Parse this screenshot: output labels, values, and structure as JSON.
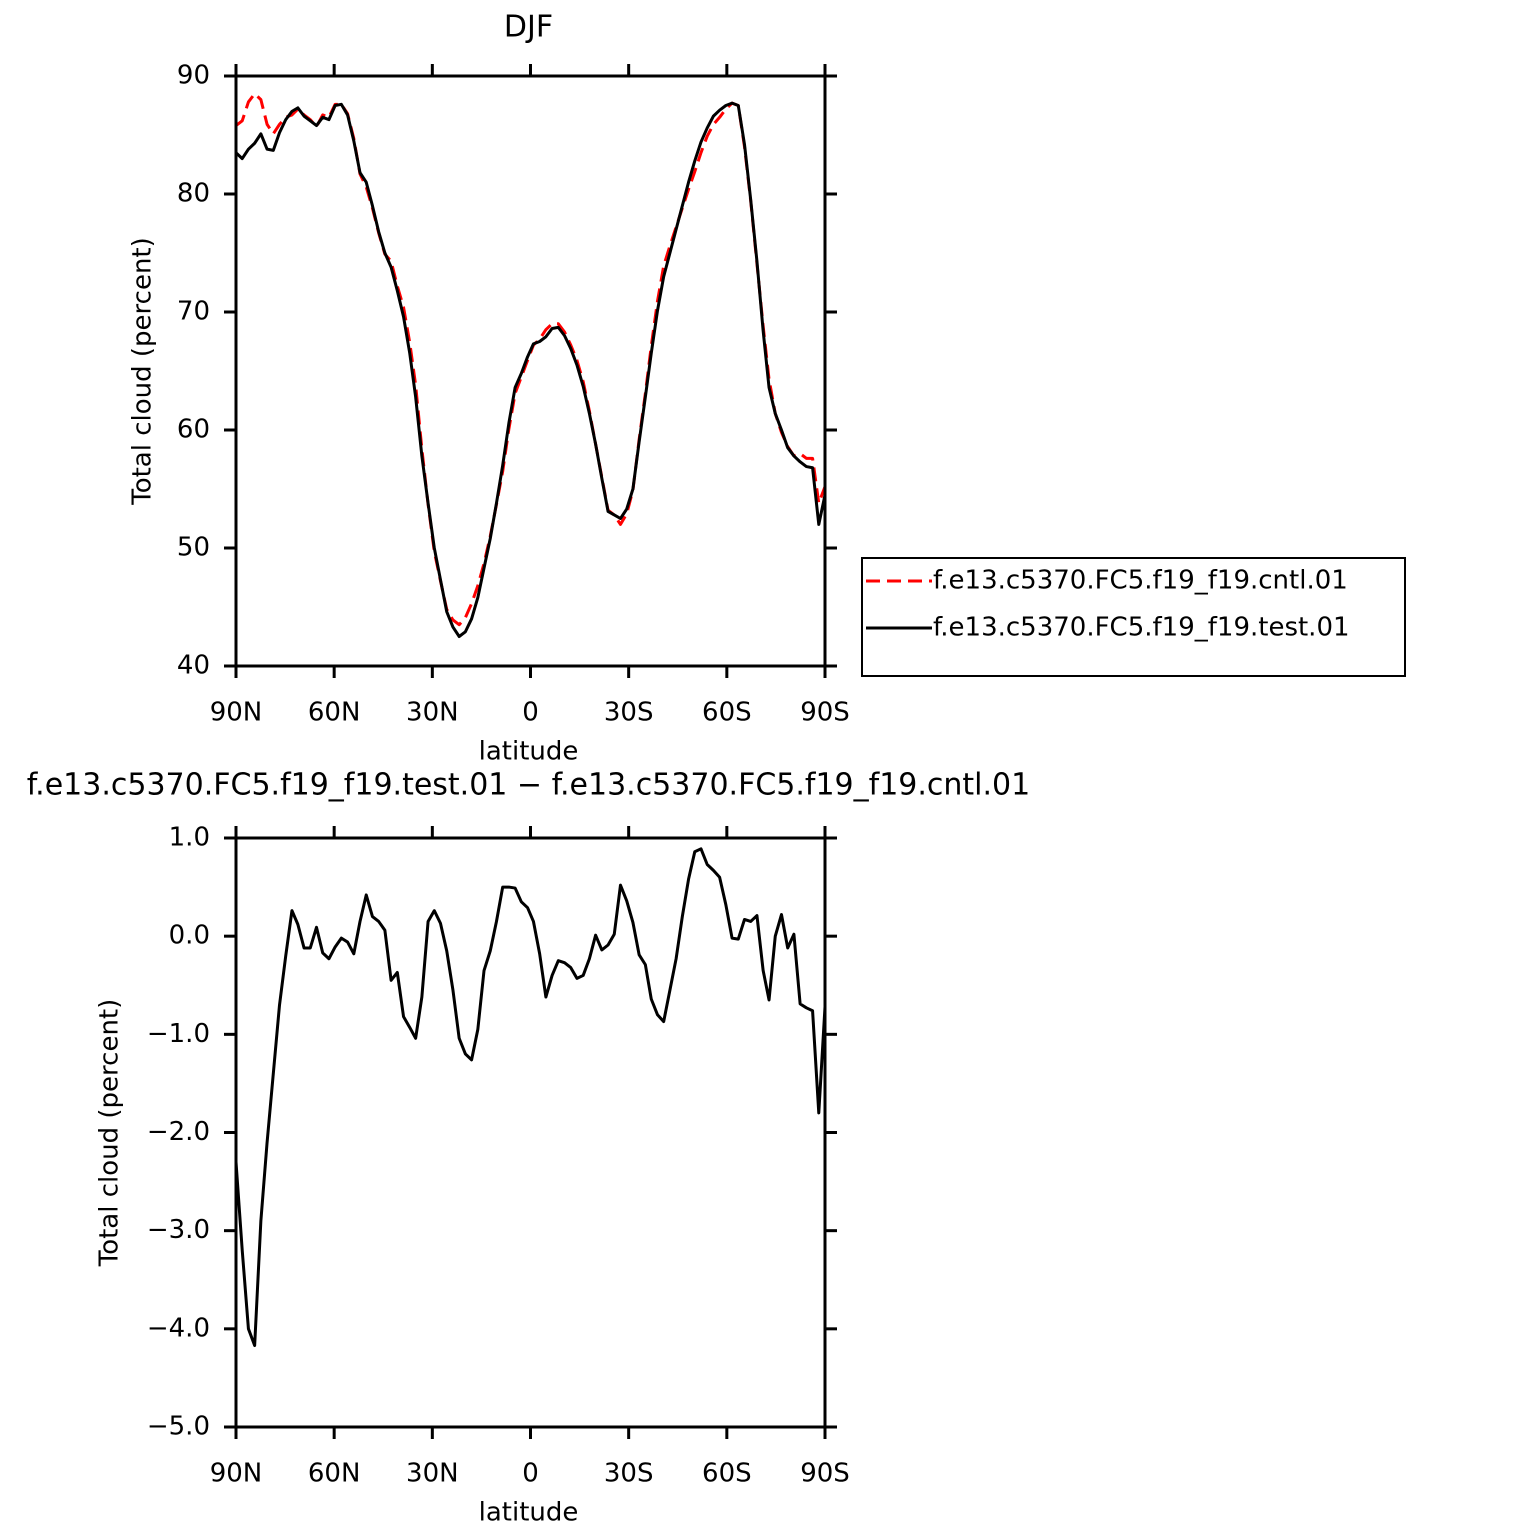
{
  "chart_data": [
    {
      "type": "line",
      "title": "DJF",
      "xlabel": "latitude",
      "ylabel": "Total cloud (percent)",
      "x": [
        90.0,
        88.1,
        86.2,
        84.3,
        82.4,
        80.5,
        78.6,
        76.7,
        74.8,
        72.9,
        71.1,
        69.2,
        67.3,
        65.4,
        63.5,
        61.6,
        59.7,
        57.8,
        55.9,
        54.0,
        52.1,
        50.2,
        48.3,
        46.4,
        44.5,
        42.6,
        40.7,
        38.8,
        36.9,
        35.1,
        33.2,
        31.3,
        29.4,
        27.5,
        25.6,
        23.7,
        21.8,
        19.9,
        18.0,
        16.1,
        14.2,
        12.3,
        10.4,
        8.5,
        6.6,
        4.7,
        2.8,
        0.9,
        -0.9,
        -2.8,
        -4.7,
        -6.6,
        -8.5,
        -10.4,
        -12.3,
        -14.2,
        -16.1,
        -18.0,
        -19.9,
        -21.8,
        -23.7,
        -25.6,
        -27.5,
        -29.4,
        -31.3,
        -33.2,
        -35.1,
        -36.9,
        -38.8,
        -40.7,
        -42.6,
        -44.5,
        -46.4,
        -48.3,
        -50.2,
        -52.1,
        -54.0,
        -55.9,
        -57.8,
        -59.7,
        -61.6,
        -63.5,
        -65.4,
        -67.3,
        -69.2,
        -71.1,
        -72.9,
        -74.8,
        -76.7,
        -78.6,
        -80.5,
        -82.4,
        -84.3,
        -86.2,
        -88.1,
        -90.0
      ],
      "series": [
        {
          "name": "f.e13.c5370.FC5.f19_f19.cntl.01",
          "color": "#ff0000",
          "dashed": true,
          "values": [
            85.8,
            86.2,
            87.8,
            88.5,
            88.0,
            85.9,
            85.1,
            85.9,
            86.5,
            86.7,
            87.2,
            86.7,
            86.3,
            85.7,
            86.7,
            86.5,
            87.6,
            87.6,
            86.8,
            84.7,
            81.7,
            80.6,
            78.8,
            76.7,
            74.9,
            74.3,
            72.2,
            70.4,
            67.4,
            63.8,
            58.4,
            53.7,
            49.7,
            47.2,
            44.8,
            43.9,
            43.5,
            44.1,
            45.3,
            46.8,
            48.7,
            51.0,
            53.7,
            56.5,
            60.1,
            63.1,
            64.5,
            65.9,
            67.2,
            67.7,
            68.5,
            69.0,
            69.0,
            68.3,
            67.2,
            65.9,
            64.1,
            61.6,
            58.8,
            56.0,
            53.2,
            52.8,
            52.0,
            52.9,
            54.9,
            59.2,
            63.1,
            67.1,
            70.9,
            73.9,
            75.6,
            77.2,
            78.8,
            80.4,
            81.9,
            83.5,
            84.9,
            85.9,
            86.5,
            87.2,
            87.7,
            87.5,
            84.0,
            79.4,
            74.1,
            68.8,
            64.3,
            61.4,
            59.8,
            58.6,
            57.8,
            58.0,
            57.6,
            57.6,
            53.8,
            55.2
          ]
        },
        {
          "name": "f.e13.c5370.FC5.f19_f19.test.01",
          "color": "#000000",
          "dashed": false,
          "values": [
            83.5,
            83.0,
            83.8,
            84.3,
            85.1,
            83.8,
            83.7,
            85.2,
            86.3,
            87.0,
            87.3,
            86.6,
            86.2,
            85.8,
            86.5,
            86.3,
            87.5,
            87.6,
            86.7,
            84.5,
            81.8,
            81.0,
            79.0,
            76.8,
            75.0,
            73.8,
            71.8,
            69.6,
            66.5,
            62.8,
            57.8,
            53.8,
            50.0,
            47.3,
            44.6,
            43.3,
            42.5,
            42.9,
            44.0,
            45.8,
            48.3,
            50.8,
            53.8,
            57.0,
            60.6,
            63.6,
            64.8,
            66.2,
            67.3,
            67.5,
            67.9,
            68.6,
            68.7,
            68.0,
            66.9,
            65.5,
            63.7,
            61.4,
            58.8,
            55.9,
            53.1,
            52.8,
            52.5,
            53.3,
            55.0,
            59.0,
            62.8,
            66.5,
            70.1,
            73.0,
            75.0,
            77.0,
            79.0,
            81.0,
            82.8,
            84.4,
            85.6,
            86.6,
            87.1,
            87.5,
            87.7,
            87.5,
            84.2,
            79.5,
            74.3,
            68.4,
            63.6,
            61.4,
            60.0,
            58.5,
            57.8,
            57.3,
            56.9,
            56.8,
            52.0,
            54.5
          ]
        }
      ],
      "xlim": [
        90,
        -90
      ],
      "xticks": [
        {
          "value": 90,
          "label": "90N"
        },
        {
          "value": 60,
          "label": "60N"
        },
        {
          "value": 30,
          "label": "30N"
        },
        0,
        {
          "value": -30,
          "label": "30S"
        },
        {
          "value": -60,
          "label": "60S"
        },
        {
          "value": -90,
          "label": "90S"
        }
      ],
      "ylim": [
        40,
        90
      ],
      "yticks": [
        40,
        50,
        60,
        70,
        80,
        90
      ],
      "legend": "right"
    },
    {
      "type": "line",
      "title": "f.e13.c5370.FC5.f19_f19.test.01 − f.e13.c5370.FC5.f19_f19.cntl.01",
      "xlabel": "latitude",
      "ylabel": "Total cloud (percent)",
      "x": [
        90.0,
        88.1,
        86.2,
        84.3,
        82.4,
        80.5,
        78.6,
        76.7,
        74.8,
        72.9,
        71.1,
        69.2,
        67.3,
        65.4,
        63.5,
        61.6,
        59.7,
        57.8,
        55.9,
        54.0,
        52.1,
        50.2,
        48.3,
        46.4,
        44.5,
        42.6,
        40.7,
        38.8,
        36.9,
        35.1,
        33.2,
        31.3,
        29.4,
        27.5,
        25.6,
        23.7,
        21.8,
        19.9,
        18.0,
        16.1,
        14.2,
        12.3,
        10.4,
        8.5,
        6.6,
        4.7,
        2.8,
        0.9,
        -0.9,
        -2.8,
        -4.7,
        -6.6,
        -8.5,
        -10.4,
        -12.3,
        -14.2,
        -16.1,
        -18.0,
        -19.9,
        -21.8,
        -23.7,
        -25.6,
        -27.5,
        -29.4,
        -31.3,
        -33.2,
        -35.1,
        -36.9,
        -38.8,
        -40.7,
        -42.6,
        -44.5,
        -46.4,
        -48.3,
        -50.2,
        -52.1,
        -54.0,
        -55.9,
        -57.8,
        -59.7,
        -61.6,
        -63.5,
        -65.4,
        -67.3,
        -69.2,
        -71.1,
        -72.9,
        -74.8,
        -76.7,
        -78.6,
        -80.5,
        -82.4,
        -84.3,
        -86.2,
        -88.1,
        -90.0
      ],
      "values": [
        -2.3,
        -3.2,
        -4.0,
        -4.17,
        -2.9,
        -2.1,
        -1.4,
        -0.7,
        -0.2,
        0.26,
        0.12,
        -0.12,
        -0.12,
        0.09,
        -0.17,
        -0.23,
        -0.11,
        -0.02,
        -0.06,
        -0.18,
        0.15,
        0.42,
        0.2,
        0.15,
        0.06,
        -0.45,
        -0.37,
        -0.82,
        -0.93,
        -1.04,
        -0.62,
        0.15,
        0.26,
        0.13,
        -0.15,
        -0.55,
        -1.04,
        -1.2,
        -1.26,
        -0.95,
        -0.35,
        -0.15,
        0.15,
        0.5,
        0.5,
        0.49,
        0.35,
        0.29,
        0.15,
        -0.18,
        -0.62,
        -0.4,
        -0.25,
        -0.27,
        -0.32,
        -0.43,
        -0.4,
        -0.23,
        0.01,
        -0.14,
        -0.09,
        0.02,
        0.52,
        0.36,
        0.14,
        -0.19,
        -0.29,
        -0.64,
        -0.8,
        -0.87,
        -0.55,
        -0.23,
        0.2,
        0.58,
        0.86,
        0.89,
        0.73,
        0.67,
        0.6,
        0.32,
        -0.02,
        -0.03,
        0.17,
        0.15,
        0.21,
        -0.35,
        -0.65,
        0.0,
        0.22,
        -0.12,
        0.02,
        -0.69,
        -0.73,
        -0.76,
        -1.8,
        -0.72
      ],
      "color": "#000000",
      "xlim": [
        90,
        -90
      ],
      "xticks": [
        {
          "value": 90,
          "label": "90N"
        },
        {
          "value": 60,
          "label": "60N"
        },
        {
          "value": 30,
          "label": "30N"
        },
        0,
        {
          "value": -30,
          "label": "30S"
        },
        {
          "value": -60,
          "label": "60S"
        },
        {
          "value": -90,
          "label": "90S"
        }
      ],
      "ylim": [
        -5,
        1
      ],
      "yticks": [
        {
          "value": -5,
          "label": "−5.0"
        },
        {
          "value": -4,
          "label": "−4.0"
        },
        {
          "value": -3,
          "label": "−3.0"
        },
        {
          "value": -2,
          "label": "−2.0"
        },
        {
          "value": -1,
          "label": "−1.0"
        },
        {
          "value": 0,
          "label": "0.0"
        },
        {
          "value": 1,
          "label": "1.0"
        }
      ]
    }
  ]
}
